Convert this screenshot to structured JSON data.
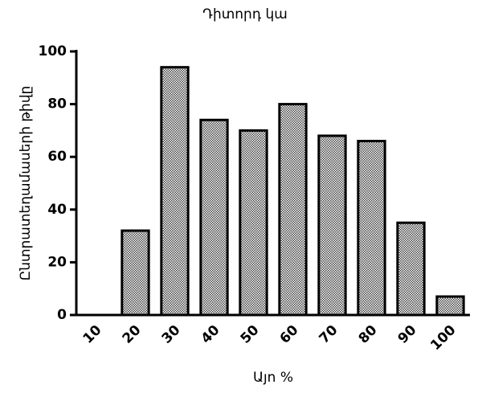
{
  "chart_data": {
    "type": "bar",
    "title": "Դիտորդ կա",
    "x_label": "Այո %",
    "y_label": "Ընտրատեղամասերի թիվը",
    "categories": [
      "10",
      "20",
      "30",
      "40",
      "50",
      "60",
      "70",
      "80",
      "90",
      "100"
    ],
    "values": [
      0,
      32,
      94,
      74,
      70,
      80,
      68,
      66,
      35,
      7
    ],
    "ylim": [
      0,
      100
    ],
    "yticks": [
      0,
      20,
      40,
      60,
      80,
      100
    ],
    "grid": false
  }
}
